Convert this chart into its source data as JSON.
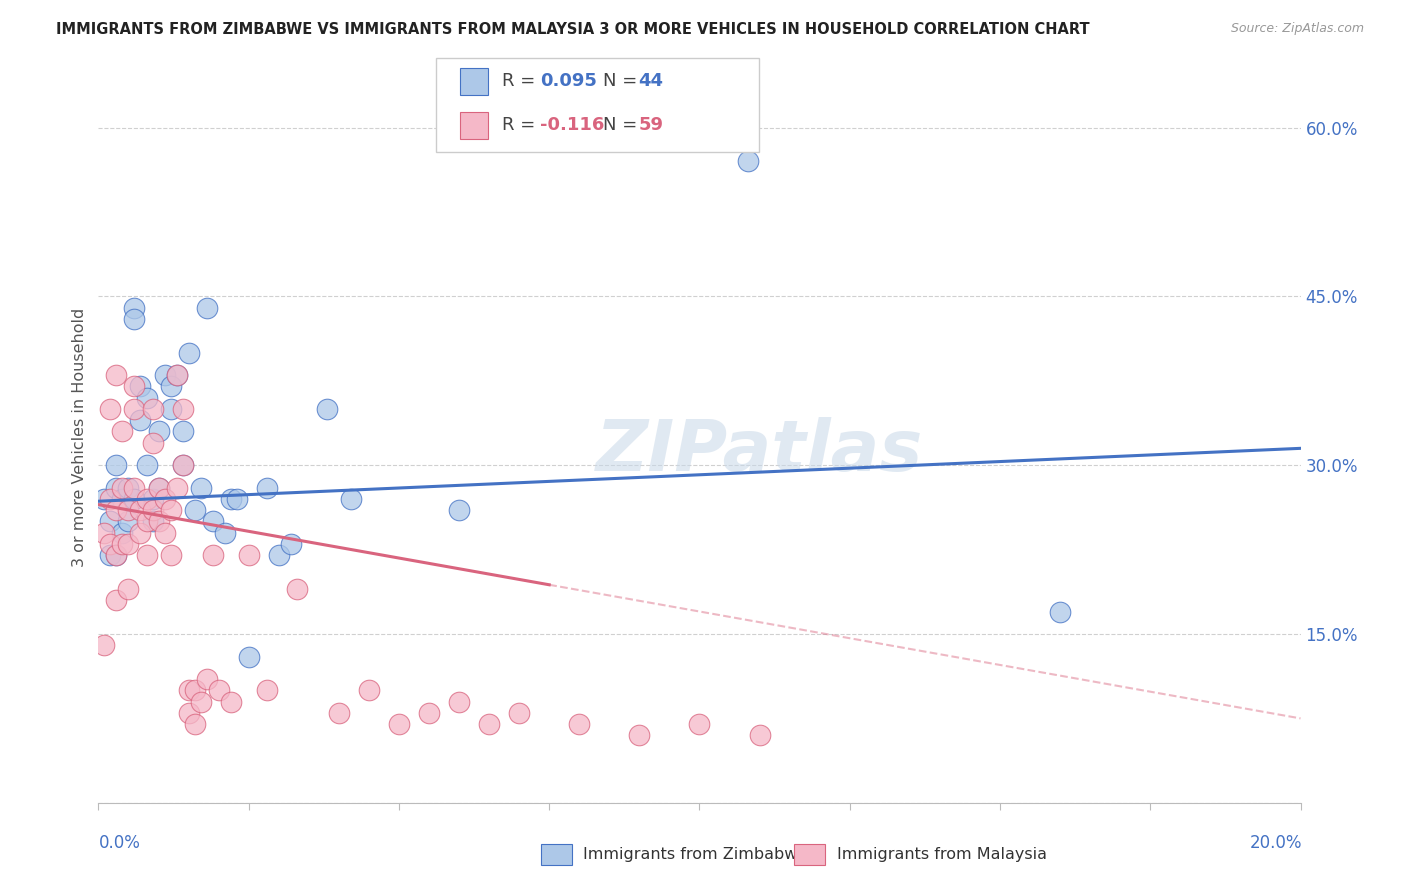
{
  "title": "IMMIGRANTS FROM ZIMBABWE VS IMMIGRANTS FROM MALAYSIA 3 OR MORE VEHICLES IN HOUSEHOLD CORRELATION CHART",
  "source": "Source: ZipAtlas.com",
  "ylabel": "3 or more Vehicles in Household",
  "yticks_right": [
    0.0,
    0.15,
    0.3,
    0.45,
    0.6
  ],
  "ytick_labels_right": [
    "",
    "15.0%",
    "30.0%",
    "45.0%",
    "60.0%"
  ],
  "xlim": [
    0.0,
    0.2
  ],
  "ylim": [
    0.0,
    0.65
  ],
  "legend1_R_label": "R = ",
  "legend1_R_val": "0.095",
  "legend1_N_label": "N = ",
  "legend1_N_val": "44",
  "legend2_R_label": "R = ",
  "legend2_R_val": "-0.116",
  "legend2_N_label": "N = ",
  "legend2_N_val": "59",
  "label_zimbabwe": "Immigrants from Zimbabwe",
  "label_malaysia": "Immigrants from Malaysia",
  "color_zimbabwe": "#adc8e8",
  "color_zimbabwe_line": "#4472c4",
  "color_malaysia": "#f5b8c8",
  "color_malaysia_line": "#d9647e",
  "watermark": "ZIPatlas",
  "scatter_zimbabwe_x": [
    0.001,
    0.002,
    0.002,
    0.003,
    0.003,
    0.004,
    0.004,
    0.005,
    0.005,
    0.006,
    0.006,
    0.007,
    0.007,
    0.008,
    0.008,
    0.009,
    0.01,
    0.01,
    0.011,
    0.012,
    0.012,
    0.013,
    0.014,
    0.015,
    0.016,
    0.017,
    0.018,
    0.019,
    0.021,
    0.022,
    0.023,
    0.025,
    0.028,
    0.03,
    0.032,
    0.038,
    0.042,
    0.06,
    0.108,
    0.16,
    0.003,
    0.006,
    0.009,
    0.014
  ],
  "scatter_zimbabwe_y": [
    0.27,
    0.25,
    0.22,
    0.3,
    0.28,
    0.27,
    0.24,
    0.28,
    0.25,
    0.44,
    0.43,
    0.37,
    0.34,
    0.36,
    0.3,
    0.27,
    0.33,
    0.28,
    0.38,
    0.37,
    0.35,
    0.38,
    0.33,
    0.4,
    0.26,
    0.28,
    0.44,
    0.25,
    0.24,
    0.27,
    0.27,
    0.13,
    0.28,
    0.22,
    0.23,
    0.35,
    0.27,
    0.26,
    0.57,
    0.17,
    0.22,
    0.27,
    0.25,
    0.3
  ],
  "scatter_malaysia_x": [
    0.001,
    0.001,
    0.002,
    0.002,
    0.002,
    0.003,
    0.003,
    0.003,
    0.003,
    0.004,
    0.004,
    0.004,
    0.005,
    0.005,
    0.005,
    0.006,
    0.006,
    0.006,
    0.007,
    0.007,
    0.008,
    0.008,
    0.008,
    0.009,
    0.009,
    0.009,
    0.01,
    0.01,
    0.011,
    0.011,
    0.012,
    0.012,
    0.013,
    0.013,
    0.014,
    0.014,
    0.015,
    0.015,
    0.016,
    0.016,
    0.017,
    0.018,
    0.019,
    0.02,
    0.022,
    0.025,
    0.028,
    0.033,
    0.04,
    0.045,
    0.05,
    0.055,
    0.06,
    0.065,
    0.07,
    0.08,
    0.09,
    0.1,
    0.11
  ],
  "scatter_malaysia_y": [
    0.14,
    0.24,
    0.27,
    0.23,
    0.35,
    0.38,
    0.26,
    0.22,
    0.18,
    0.33,
    0.28,
    0.23,
    0.26,
    0.23,
    0.19,
    0.37,
    0.35,
    0.28,
    0.26,
    0.24,
    0.27,
    0.25,
    0.22,
    0.35,
    0.32,
    0.26,
    0.28,
    0.25,
    0.27,
    0.24,
    0.26,
    0.22,
    0.38,
    0.28,
    0.35,
    0.3,
    0.1,
    0.08,
    0.1,
    0.07,
    0.09,
    0.11,
    0.22,
    0.1,
    0.09,
    0.22,
    0.1,
    0.19,
    0.08,
    0.1,
    0.07,
    0.08,
    0.09,
    0.07,
    0.08,
    0.07,
    0.06,
    0.07,
    0.06
  ],
  "trendline_zim_x0": 0.0,
  "trendline_zim_x1": 0.2,
  "trendline_zim_y0": 0.268,
  "trendline_zim_y1": 0.315,
  "trendline_mal_x0": 0.0,
  "trendline_mal_x1": 0.2,
  "trendline_mal_y0": 0.265,
  "trendline_mal_y1": 0.075,
  "trendline_mal_solid_end": 0.075
}
